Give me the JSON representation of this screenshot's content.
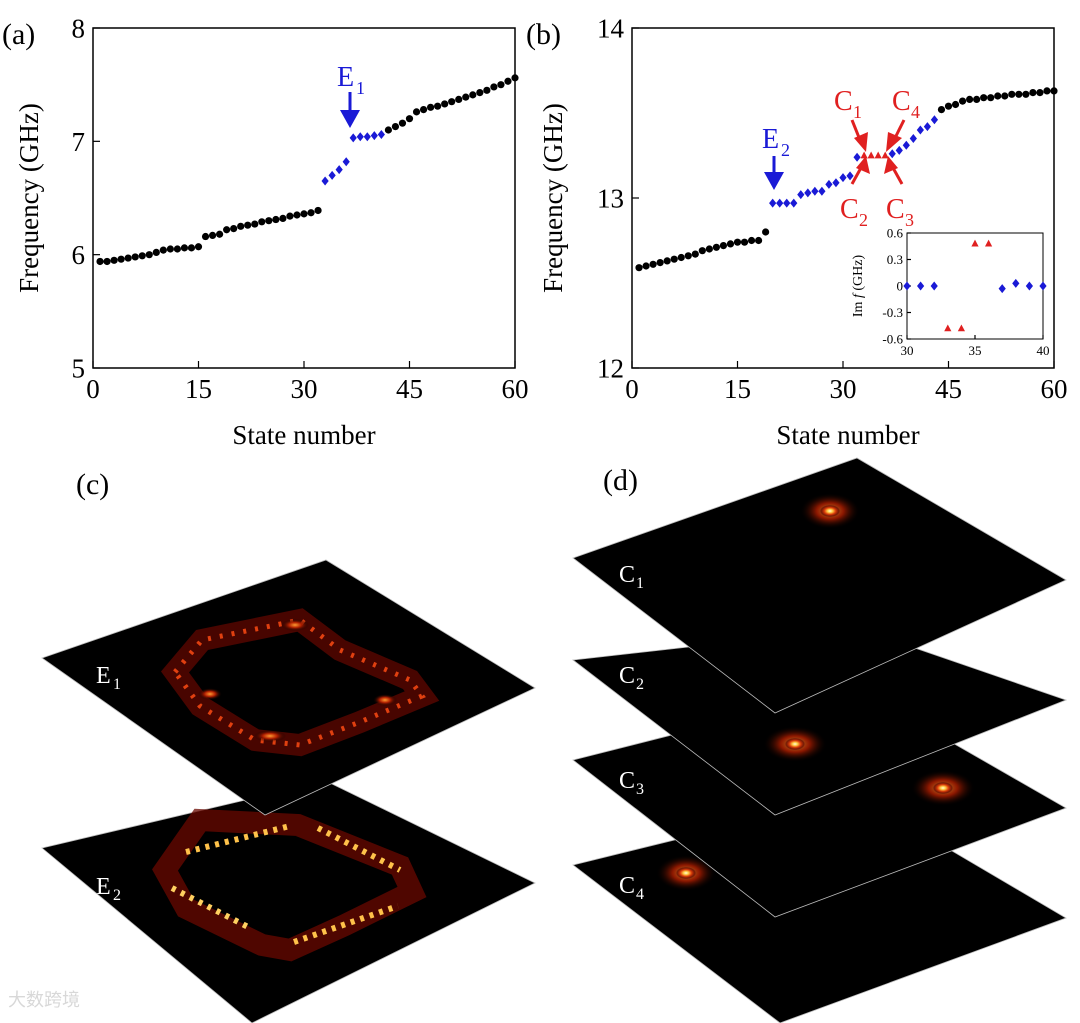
{
  "chart_data": [
    {
      "panel": "(a)",
      "type": "scatter",
      "xlabel": "State number",
      "ylabel": "Frequency (GHz)",
      "xlim": [
        0,
        60
      ],
      "ylim": [
        5,
        8
      ],
      "xticks": [
        "0",
        "15",
        "30",
        "45",
        "60"
      ],
      "yticks": [
        "5",
        "6",
        "7",
        "8"
      ],
      "series": [
        {
          "name": "bulk",
          "color": "#000000",
          "marker": "circle",
          "x": [
            1,
            2,
            3,
            4,
            5,
            6,
            7,
            8,
            9,
            10,
            11,
            12,
            13,
            14,
            15,
            16,
            17,
            18,
            19,
            20,
            21,
            22,
            23,
            24,
            25,
            26,
            27,
            28,
            29,
            30,
            31,
            32,
            42,
            43,
            44,
            45,
            46,
            47,
            48,
            49,
            50,
            51,
            52,
            53,
            54,
            55,
            56,
            57,
            58,
            59,
            60
          ],
          "y": [
            5.94,
            5.94,
            5.95,
            5.96,
            5.97,
            5.98,
            5.99,
            6.0,
            6.02,
            6.04,
            6.05,
            6.05,
            6.06,
            6.06,
            6.07,
            6.16,
            6.17,
            6.18,
            6.22,
            6.23,
            6.25,
            6.26,
            6.27,
            6.29,
            6.3,
            6.31,
            6.32,
            6.34,
            6.35,
            6.36,
            6.37,
            6.39,
            7.1,
            7.13,
            7.16,
            7.2,
            7.26,
            7.28,
            7.3,
            7.31,
            7.33,
            7.35,
            7.37,
            7.39,
            7.41,
            7.43,
            7.45,
            7.48,
            7.5,
            7.53,
            7.56
          ]
        },
        {
          "name": "edge",
          "color": "#1a1ad6",
          "marker": "diamond",
          "x": [
            33,
            34,
            35,
            36,
            37,
            38,
            39,
            40,
            41
          ],
          "y": [
            6.65,
            6.7,
            6.75,
            6.82,
            7.03,
            7.04,
            7.04,
            7.05,
            7.06
          ]
        }
      ],
      "annotations": [
        {
          "text": "E",
          "sub": "1",
          "x": 37,
          "y": 7.3,
          "color": "#1a1ad6"
        }
      ]
    },
    {
      "panel": "(b)",
      "type": "scatter",
      "xlabel": "State number",
      "ylabel": "Frequency (GHz)",
      "xlim": [
        0,
        60
      ],
      "ylim": [
        12,
        14
      ],
      "xticks": [
        "0",
        "15",
        "30",
        "45",
        "60"
      ],
      "yticks": [
        "12",
        "13",
        "14"
      ],
      "series": [
        {
          "name": "bulk",
          "color": "#000000",
          "marker": "circle",
          "x": [
            1,
            2,
            3,
            4,
            5,
            6,
            7,
            8,
            9,
            10,
            11,
            12,
            13,
            14,
            15,
            16,
            17,
            18,
            19,
            44,
            45,
            46,
            47,
            48,
            49,
            50,
            51,
            52,
            53,
            54,
            55,
            56,
            57,
            58,
            59,
            60
          ],
          "y": [
            12.59,
            12.6,
            12.61,
            12.62,
            12.63,
            12.64,
            12.65,
            12.66,
            12.67,
            12.69,
            12.7,
            12.71,
            12.72,
            12.73,
            12.74,
            12.74,
            12.75,
            12.75,
            12.8,
            13.52,
            13.54,
            13.55,
            13.57,
            13.58,
            13.58,
            13.59,
            13.59,
            13.6,
            13.6,
            13.61,
            13.61,
            13.61,
            13.62,
            13.62,
            13.63,
            13.63
          ]
        },
        {
          "name": "edge",
          "color": "#1a1ad6",
          "marker": "diamond",
          "x": [
            20,
            21,
            22,
            23,
            24,
            25,
            26,
            27,
            28,
            29,
            30,
            31,
            32,
            37,
            38,
            39,
            40,
            41,
            42,
            43
          ],
          "y": [
            12.97,
            12.97,
            12.97,
            12.97,
            13.02,
            13.03,
            13.04,
            13.04,
            13.08,
            13.09,
            13.12,
            13.13,
            13.24,
            13.26,
            13.28,
            13.31,
            13.35,
            13.4,
            13.42,
            13.46
          ]
        },
        {
          "name": "corner",
          "color": "#e02020",
          "marker": "triangle",
          "x": [
            33,
            34,
            35,
            36
          ],
          "y": [
            13.25,
            13.25,
            13.25,
            13.25
          ]
        }
      ],
      "annotations": [
        {
          "text": "E",
          "sub": "2",
          "x": 20,
          "y": 13.25,
          "color": "#1a1ad6"
        },
        {
          "text": "C",
          "sub": "1",
          "x": 33,
          "y": 13.5,
          "color": "#e02020"
        },
        {
          "text": "C",
          "sub": "4",
          "x": 36,
          "y": 13.5,
          "color": "#e02020"
        },
        {
          "text": "C",
          "sub": "2",
          "x": 33,
          "y": 12.95,
          "color": "#e02020"
        },
        {
          "text": "C",
          "sub": "3",
          "x": 36,
          "y": 12.95,
          "color": "#e02020"
        }
      ],
      "inset": {
        "type": "scatter",
        "ylabel_pre": "Im ",
        "ylabel_var": "f",
        "ylabel_post": " (GHz)",
        "xlim": [
          30,
          40
        ],
        "ylim": [
          -0.6,
          0.6
        ],
        "xticks": [
          "30",
          "35",
          "40"
        ],
        "yticks": [
          "0.6",
          "0.3",
          "0",
          "-0.3",
          "-0.6"
        ],
        "series": [
          {
            "name": "edge",
            "color": "#1a1ad6",
            "marker": "diamond",
            "x": [
              30,
              31,
              32,
              37,
              38,
              39,
              40
            ],
            "y": [
              0,
              0,
              0,
              -0.03,
              0.03,
              0,
              0
            ]
          },
          {
            "name": "corner",
            "color": "#e02020",
            "marker": "triangle",
            "x": [
              33,
              34,
              35,
              36
            ],
            "y": [
              -0.48,
              -0.48,
              0.48,
              0.48
            ]
          }
        ]
      }
    }
  ],
  "fields": {
    "panel_c_label": "(c)",
    "panel_d_label": "(d)",
    "panel_c": [
      {
        "label": "E",
        "sub": "1"
      },
      {
        "label": "E",
        "sub": "2"
      }
    ],
    "panel_d": [
      {
        "label": "C",
        "sub": "1"
      },
      {
        "label": "C",
        "sub": "2"
      },
      {
        "label": "C",
        "sub": "3"
      },
      {
        "label": "C",
        "sub": "4"
      }
    ]
  },
  "watermark": "大数跨境"
}
